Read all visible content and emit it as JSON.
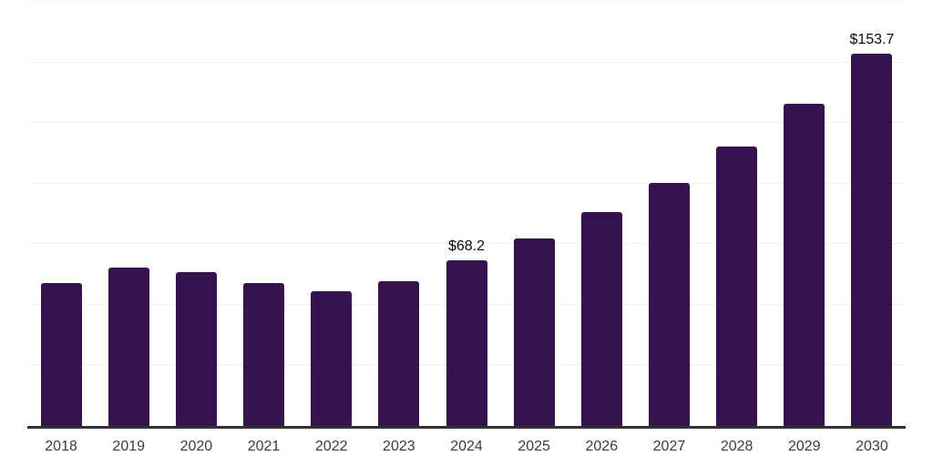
{
  "chart_data": {
    "type": "bar",
    "categories": [
      "2018",
      "2019",
      "2020",
      "2021",
      "2022",
      "2023",
      "2024",
      "2025",
      "2026",
      "2027",
      "2028",
      "2029",
      "2030"
    ],
    "values": [
      59.0,
      65.4,
      63.4,
      59.0,
      55.5,
      59.8,
      68.2,
      77.4,
      88.1,
      100.4,
      115.3,
      132.9,
      153.7
    ],
    "point_labels": [
      null,
      null,
      null,
      null,
      null,
      null,
      "$68.2",
      null,
      null,
      null,
      null,
      null,
      "$153.7"
    ],
    "title": "",
    "xlabel": "",
    "ylabel": "",
    "ylim": [
      0,
      175
    ],
    "gridline_step": 25,
    "grid": "horizontal",
    "legend_position": "none",
    "colors": {
      "bar": "#36124E",
      "axis_line": "#333333",
      "gridline": "#efefef",
      "tick_label": "#3c3c3c",
      "value_label": "#0a0a0a",
      "background": "#ffffff"
    }
  }
}
